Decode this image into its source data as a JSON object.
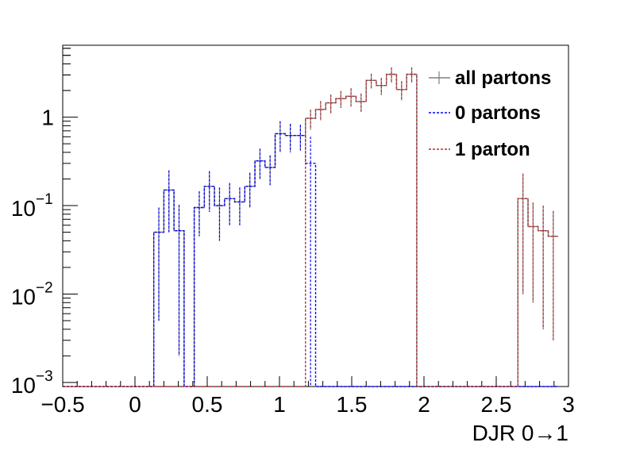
{
  "chart_data": {
    "type": "step-histogram",
    "xlabel": "DJR 0→1",
    "ylabel": "",
    "xlim": [
      -0.5,
      3.0
    ],
    "ylim": [
      0.0009,
      6.5
    ],
    "yscale": "log",
    "x_tick_labels": [
      "−0.5",
      "0",
      "0.5",
      "1",
      "1.5",
      "2",
      "2.5",
      "3"
    ],
    "x_tick_values": [
      -0.5,
      0,
      0.5,
      1,
      1.5,
      2,
      2.5,
      3
    ],
    "y_tick_labels": [
      {
        "value": 1,
        "base": "1",
        "exp": ""
      },
      {
        "value": 0.1,
        "base": "10",
        "exp": "−1"
      },
      {
        "value": 0.01,
        "base": "10",
        "exp": "−2"
      },
      {
        "value": 0.001,
        "base": "10",
        "exp": "−3"
      }
    ],
    "bin_edges_start": -0.5,
    "bin_width": 0.07,
    "legend_position": "top-right",
    "series": [
      {
        "name": "all partons",
        "color": "#808080",
        "style": "solid",
        "values": [
          0,
          0,
          0,
          0,
          0,
          0,
          0,
          0,
          0,
          0.05,
          0.15,
          0.052,
          0,
          0.095,
          0.165,
          0.1,
          0.12,
          0.11,
          0.165,
          0.32,
          0.27,
          0.65,
          0.62,
          0.62,
          0.97,
          1.22,
          1.45,
          1.62,
          1.72,
          1.5,
          2.6,
          2.28,
          3.05,
          2.05,
          3.05,
          0,
          0,
          0,
          0,
          0,
          0,
          0,
          0,
          0,
          0,
          0.12,
          0.058,
          0.052,
          0.045
        ],
        "errors": [
          0,
          0,
          0,
          0,
          0,
          0,
          0,
          0,
          0,
          0.045,
          0.1,
          0.05,
          0,
          0.05,
          0.08,
          0.06,
          0.06,
          0.05,
          0.07,
          0.12,
          0.1,
          0.25,
          0.22,
          0.2,
          0.25,
          0.3,
          0.35,
          0.35,
          0.4,
          0.35,
          0.5,
          0.5,
          0.6,
          0.5,
          0.6,
          0,
          0,
          0,
          0,
          0,
          0,
          0,
          0,
          0,
          0,
          0.11,
          0.05,
          0.048,
          0.042
        ]
      },
      {
        "name": "0 partons",
        "color": "#0000ff",
        "style": "dashed",
        "values": [
          0,
          0,
          0,
          0,
          0,
          0,
          0,
          0,
          0,
          0.05,
          0.15,
          0.052,
          0,
          0.095,
          0.165,
          0.1,
          0.12,
          0.11,
          0.165,
          0.32,
          0.27,
          0.65,
          0.62,
          0.62,
          0.3,
          0,
          0,
          0,
          0,
          0,
          0,
          0,
          0,
          0,
          0,
          0,
          0,
          0,
          0,
          0,
          0,
          0,
          0,
          0,
          0,
          0,
          0,
          0,
          0
        ],
        "errors": [
          0,
          0,
          0,
          0,
          0,
          0,
          0,
          0,
          0,
          0.045,
          0.1,
          0.05,
          0,
          0.05,
          0.08,
          0.06,
          0.06,
          0.05,
          0.07,
          0.12,
          0.1,
          0.25,
          0.22,
          0.2,
          0.3,
          0,
          0,
          0,
          0,
          0,
          0,
          0,
          0,
          0,
          0,
          0,
          0,
          0,
          0,
          0,
          0,
          0,
          0,
          0,
          0,
          0,
          0,
          0,
          0
        ]
      },
      {
        "name": "1 parton",
        "color": "#b03030",
        "style": "dashed",
        "values": [
          0,
          0,
          0,
          0,
          0,
          0,
          0,
          0,
          0,
          0,
          0,
          0,
          0,
          0,
          0,
          0,
          0,
          0,
          0,
          0,
          0,
          0,
          0,
          0,
          0.97,
          1.22,
          1.45,
          1.62,
          1.72,
          1.5,
          2.6,
          2.28,
          3.05,
          2.05,
          3.05,
          0,
          0,
          0,
          0,
          0,
          0,
          0,
          0,
          0,
          0,
          0.12,
          0.058,
          0.052,
          0.045
        ],
        "errors": [
          0,
          0,
          0,
          0,
          0,
          0,
          0,
          0,
          0,
          0,
          0,
          0,
          0,
          0,
          0,
          0,
          0,
          0,
          0,
          0,
          0,
          0,
          0,
          0,
          0.25,
          0.3,
          0.35,
          0.35,
          0.4,
          0.35,
          0.5,
          0.5,
          0.6,
          0.5,
          0.6,
          0,
          0,
          0,
          0,
          0,
          0,
          0,
          0,
          0,
          0,
          0.11,
          0.05,
          0.048,
          0.042
        ]
      }
    ]
  }
}
